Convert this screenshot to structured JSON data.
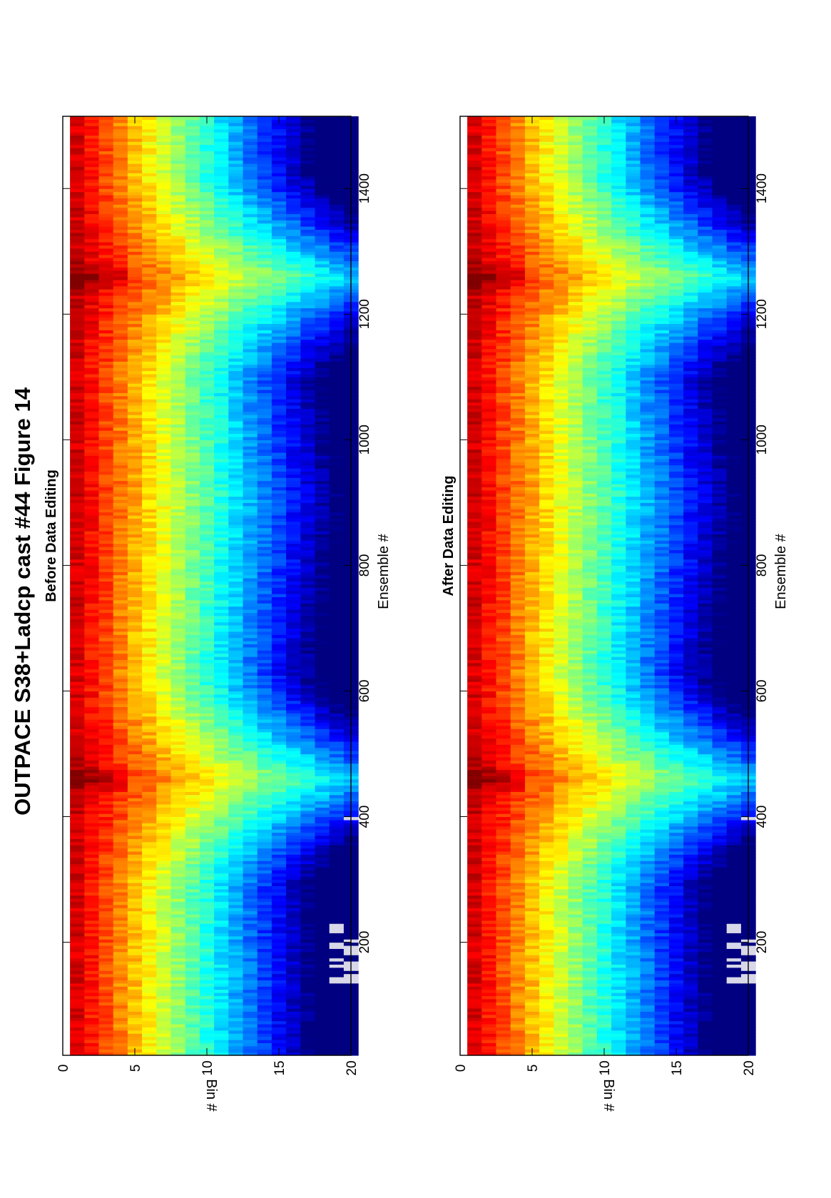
{
  "figure": {
    "title": "OUTPACE S38+Ladcp cast #44  Figure 14"
  },
  "colors": {
    "background": "#ffffff",
    "axes": "#000000",
    "bad_data": "#d8d8e8",
    "colormap": "jet"
  },
  "chart_data": [
    {
      "type": "heatmap",
      "title": "Before Data Editing",
      "xlabel": "Ensemble #",
      "ylabel": "Bin #",
      "xlim": [
        20,
        1515
      ],
      "ylim": [
        0,
        20
      ],
      "x_ticks": [
        200,
        400,
        600,
        800,
        1000,
        1200,
        1400
      ],
      "y_ticks": [
        0,
        5,
        10,
        15,
        20
      ],
      "colormap": "jet",
      "bins": 20,
      "ensembles": 1515,
      "features": {
        "deep_peaks_ensemble": [
          460,
          1260
        ],
        "shallow_ensemble": [
          905
        ],
        "gap_bins": 19.5
      }
    },
    {
      "type": "heatmap",
      "title": "After Data Editing",
      "xlabel": "Ensemble #",
      "ylabel": "Bin #",
      "xlim": [
        20,
        1515
      ],
      "ylim": [
        0,
        20
      ],
      "x_ticks": [
        200,
        400,
        600,
        800,
        1000,
        1200,
        1400
      ],
      "y_ticks": [
        0,
        5,
        10,
        15,
        20
      ],
      "colormap": "jet",
      "bins": 20,
      "ensembles": 1515,
      "features": {
        "deep_peaks_ensemble": [
          460,
          1260
        ],
        "shallow_ensemble": [
          905
        ],
        "gap_bins": 19.5
      }
    }
  ]
}
